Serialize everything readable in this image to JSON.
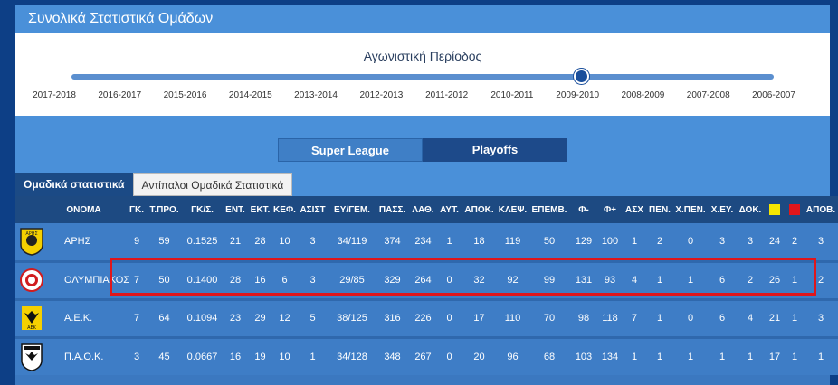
{
  "page_title": "Συνολικά Στατιστικά Ομάδων",
  "season_picker": {
    "heading": "Αγωνιστική Περίοδος",
    "seasons": [
      "2017-2018",
      "2016-2017",
      "2015-2016",
      "2014-2015",
      "2013-2014",
      "2012-2013",
      "2011-2012",
      "2010-2011",
      "2009-2010",
      "2008-2009",
      "2007-2008",
      "2006-2007"
    ],
    "selected": "2009-2010"
  },
  "competition_tabs": [
    "Super League",
    "Playoffs"
  ],
  "stat_tabs": [
    "Ομαδικά στατιστικά",
    "Αντίπαλοι Ομαδικά Στατιστικά"
  ],
  "table": {
    "headers": [
      "ΟΝΟΜΑ",
      "ΓΚ.",
      "Τ.ΠΡΟ.",
      "ΓΚ/Σ.",
      "ΕΝΤ.",
      "ΕΚΤ.",
      "ΚΕΦ.",
      "ΑΣΙΣΤ",
      "ΕΥ/ΓΕΜ.",
      "ΠΑΣΣ.",
      "ΛΑΘ.",
      "ΑΥΤ.",
      "ΑΠΟΚ.",
      "ΚΛΕΨ.",
      "ΕΠΕΜΒ.",
      "Φ-",
      "Φ+",
      "ΑΣΧ",
      "ΠΕΝ.",
      "Χ.ΠΕΝ.",
      "Χ.ΕΥ.",
      "ΔΟΚ.",
      "yellow-card",
      "red-card",
      "ΑΠΟΒ."
    ],
    "rows": [
      {
        "team": "ΑΡΗΣ",
        "logo": "aris-logo",
        "values": [
          "9",
          "59",
          "0.1525",
          "21",
          "28",
          "10",
          "3",
          "34/119",
          "374",
          "234",
          "1",
          "18",
          "119",
          "50",
          "129",
          "100",
          "1",
          "2",
          "0",
          "3",
          "3",
          "24",
          "2",
          "3"
        ]
      },
      {
        "team": "ΟΛΥΜΠΙΑΚΟΣ",
        "logo": "olympiacos-logo",
        "values": [
          "7",
          "50",
          "0.1400",
          "28",
          "16",
          "6",
          "3",
          "29/85",
          "329",
          "264",
          "0",
          "32",
          "92",
          "99",
          "131",
          "93",
          "4",
          "1",
          "1",
          "6",
          "2",
          "26",
          "1",
          "2"
        ]
      },
      {
        "team": "Α.Ε.Κ.",
        "logo": "aek-logo",
        "values": [
          "7",
          "64",
          "0.1094",
          "23",
          "29",
          "12",
          "5",
          "38/125",
          "316",
          "226",
          "0",
          "17",
          "110",
          "70",
          "98",
          "118",
          "7",
          "1",
          "0",
          "6",
          "4",
          "21",
          "1",
          "3"
        ]
      },
      {
        "team": "Π.Α.Ο.Κ.",
        "logo": "paok-logo",
        "values": [
          "3",
          "45",
          "0.0667",
          "16",
          "19",
          "10",
          "1",
          "34/128",
          "348",
          "267",
          "0",
          "20",
          "96",
          "68",
          "103",
          "134",
          "1",
          "1",
          "1",
          "1",
          "1",
          "17",
          "1",
          "1"
        ]
      }
    ],
    "highlighted_team": "ΟΛΥΜΠΙΑΚΟΣ"
  },
  "colors": {
    "yellow_card": "#f5e600",
    "red_card": "#e0161b",
    "highlight": "#e0161b"
  }
}
